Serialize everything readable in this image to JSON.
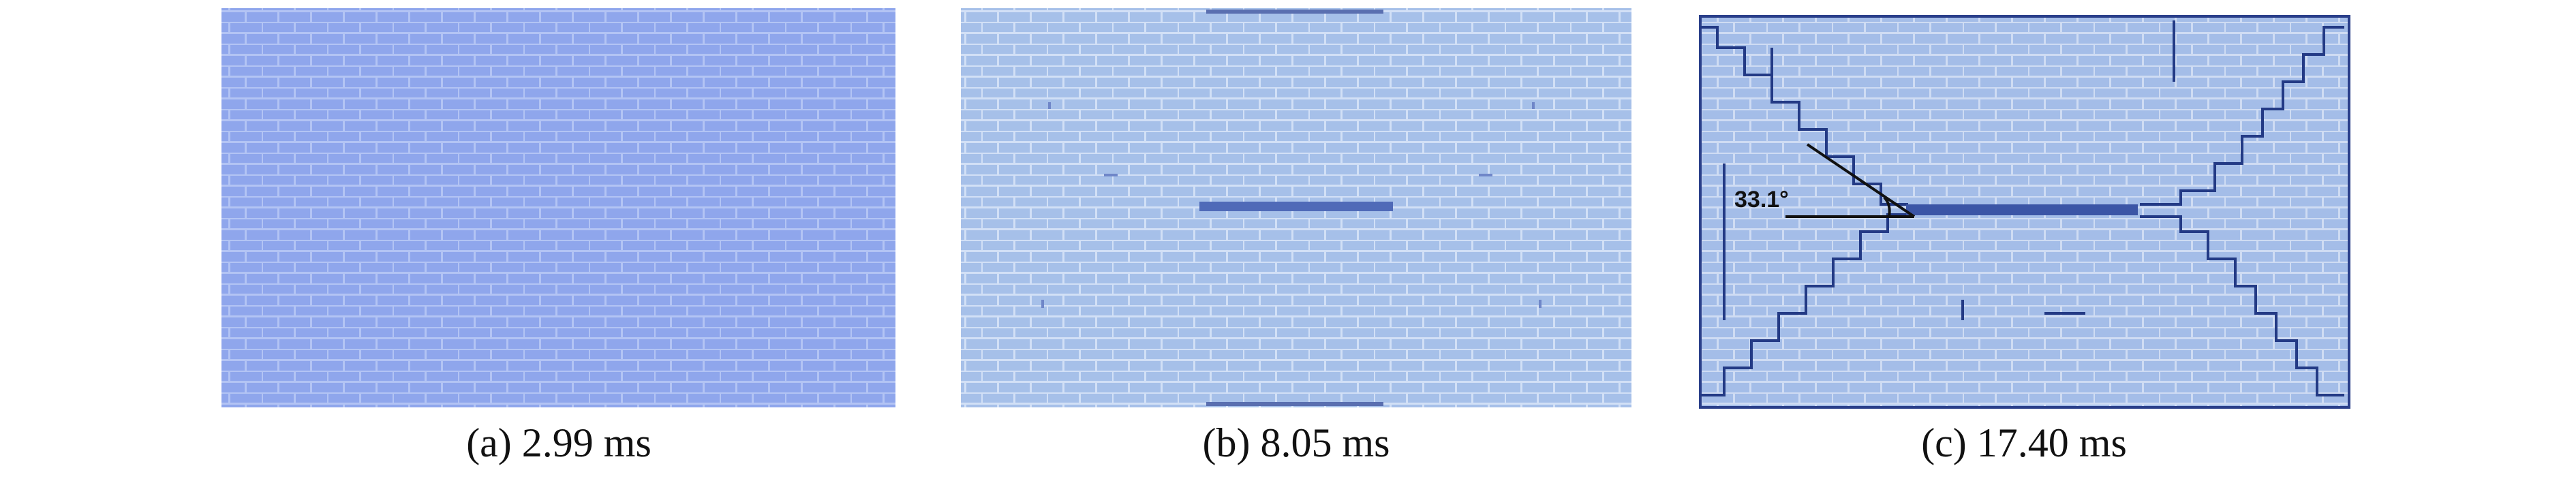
{
  "panels": [
    {
      "caption": "(a) 2.99 ms"
    },
    {
      "caption": "(b) 8.05 ms"
    },
    {
      "caption": "(c) 17.40 ms"
    }
  ],
  "annotation": "33.1°"
}
